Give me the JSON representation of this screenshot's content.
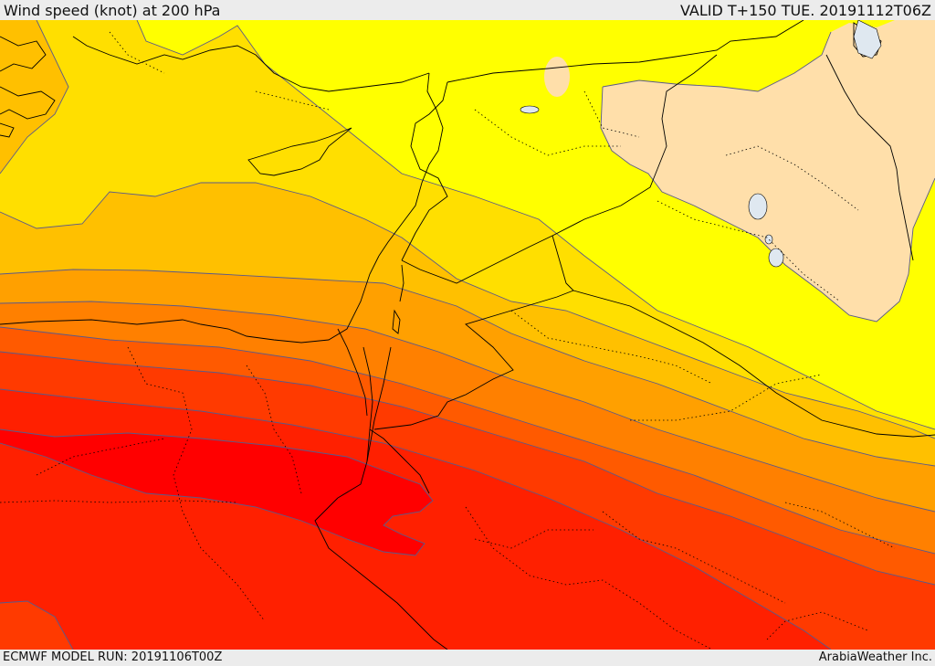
{
  "header": {
    "title": "Wind speed (knot) at 200 hPa",
    "valid_time": "VALID T+150 TUE. 20191112T06Z"
  },
  "footer": {
    "model_run": "ECMWF MODEL RUN: 20191106T00Z",
    "credit": "ArabiaWeather Inc."
  },
  "map": {
    "variable": "wind speed",
    "level": "200 hPa",
    "colors": {
      "band_1": "#ffdfaa",
      "band_2": "#ffff00",
      "band_3": "#ffdf00",
      "band_4": "#ffc000",
      "band_5": "#ffa000",
      "band_6": "#ff8000",
      "band_7": "#ff5a00",
      "band_8": "#ff3a00",
      "band_9": "#ff2000",
      "band_10": "#ff0000",
      "water": "#dfe8f0",
      "contour": "#5a5a8a",
      "border": "#000000"
    }
  }
}
